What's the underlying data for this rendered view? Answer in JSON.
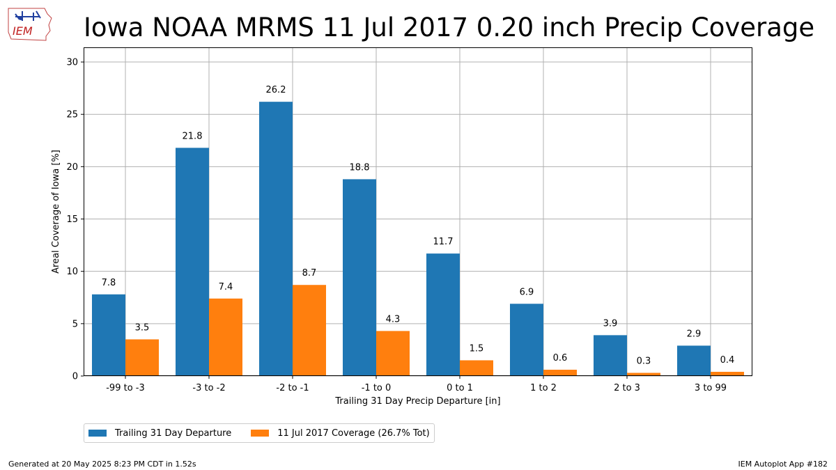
{
  "title": "Iowa NOAA MRMS 11 Jul 2017 0.20 inch Precip Coverage",
  "logo_text": "IEM",
  "footer": {
    "left": "Generated at 20 May 2025 8:23 PM CDT in 1.52s",
    "right": "IEM Autoplot App #182"
  },
  "chart_data": {
    "type": "bar",
    "title": "Iowa NOAA MRMS 11 Jul 2017 0.20 inch Precip Coverage",
    "xlabel": "Trailing 31 Day Precip Departure [in]",
    "ylabel": "Areal Coverage of Iowa [%]",
    "ylim": [
      0,
      31.4
    ],
    "yticks": [
      0,
      5,
      10,
      15,
      20,
      25,
      30
    ],
    "grid": true,
    "legend_position": "bottom-left, below plot",
    "categories": [
      "-99 to -3",
      "-3 to -2",
      "-2 to -1",
      "-1 to 0",
      "0 to 1",
      "1 to 2",
      "2 to 3",
      "3 to 99"
    ],
    "series": [
      {
        "name": "Trailing 31 Day Departure",
        "color": "#1f77b4",
        "values": [
          7.8,
          21.8,
          26.2,
          18.8,
          11.7,
          6.9,
          3.9,
          2.9
        ],
        "labels": [
          "7.8",
          "21.8",
          "26.2",
          "18.8",
          "11.7",
          "6.9",
          "3.9",
          "2.9"
        ]
      },
      {
        "name": "11 Jul 2017 Coverage (26.7% Tot)",
        "color": "#ff7f0e",
        "values": [
          3.5,
          7.4,
          8.7,
          4.3,
          1.5,
          0.6,
          0.3,
          0.4
        ],
        "labels": [
          "3.5",
          "7.4",
          "8.7",
          "4.3",
          "1.5",
          "0.6",
          "0.3",
          "0.4"
        ]
      }
    ]
  }
}
